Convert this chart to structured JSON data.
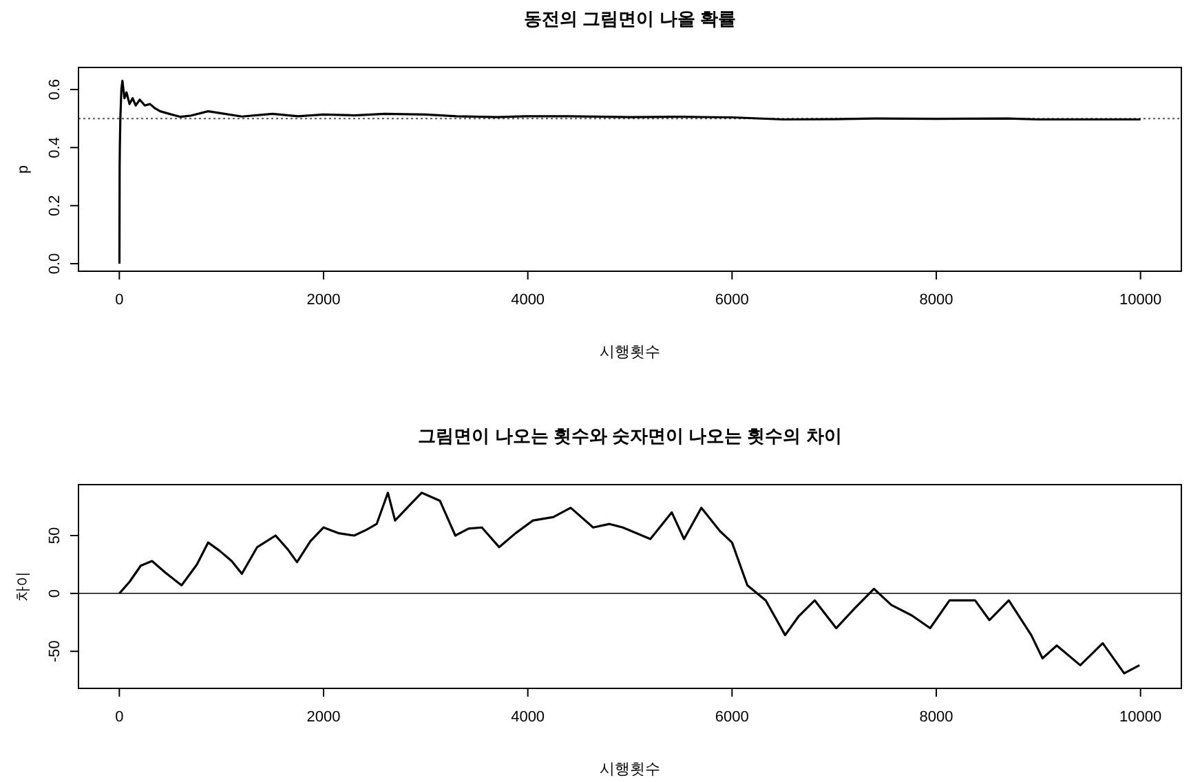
{
  "chart_data": [
    {
      "type": "line",
      "title": "동전의 그림면이 나올 확률",
      "xlabel": "시행횟수",
      "ylabel": "p",
      "xlim": [
        -400,
        10400
      ],
      "ylim": [
        -0.026,
        0.676
      ],
      "xticks": [
        0,
        2000,
        4000,
        6000,
        8000,
        10000
      ],
      "yticks": [
        {
          "value": 0,
          "label": "0.0"
        },
        0.2,
        0.4,
        0.6
      ],
      "ref_lines": [
        {
          "axis": "y",
          "value": 0.5,
          "color": "#555555",
          "line_style": "dotted"
        }
      ],
      "series": [
        {
          "color": "#000000",
          "line_style": "solid",
          "x": [
            1,
            3,
            5,
            10,
            20,
            30,
            40,
            50,
            70,
            100,
            130,
            160,
            200,
            250,
            300,
            350,
            400,
            500,
            600,
            700,
            870,
            1000,
            1200,
            1500,
            1750,
            2000,
            2300,
            2600,
            3000,
            3300,
            3700,
            4000,
            4400,
            5000,
            5500,
            6000,
            6500,
            7000,
            7400,
            8000,
            8700,
            9000,
            9400,
            10000
          ],
          "values": [
            0.0,
            0.333,
            0.4,
            0.5,
            0.6,
            0.63,
            0.6,
            0.57,
            0.59,
            0.55,
            0.57,
            0.545,
            0.565,
            0.545,
            0.55,
            0.535,
            0.525,
            0.515,
            0.506,
            0.51,
            0.525,
            0.518,
            0.507,
            0.516,
            0.508,
            0.514,
            0.511,
            0.516,
            0.514,
            0.508,
            0.505,
            0.508,
            0.508,
            0.505,
            0.506,
            0.504,
            0.497,
            0.498,
            0.5,
            0.499,
            0.5,
            0.497,
            0.497,
            0.497
          ]
        }
      ]
    },
    {
      "type": "line",
      "title": "그림면이 나오는 횟수와 숫자면이 나오는 횟수의 차이",
      "xlabel": "시행횟수",
      "ylabel": "차이",
      "xlim": [
        -400,
        10400
      ],
      "ylim": [
        -82,
        94
      ],
      "xticks": [
        0,
        2000,
        4000,
        6000,
        8000,
        10000
      ],
      "yticks": [
        -50,
        0,
        50
      ],
      "ref_lines": [
        {
          "axis": "y",
          "value": 0,
          "color": "#444444",
          "line_style": "solid"
        }
      ],
      "series": [
        {
          "color": "#000000",
          "line_style": "solid",
          "x": [
            0,
            100,
            210,
            320,
            450,
            610,
            760,
            870,
            980,
            1100,
            1200,
            1350,
            1530,
            1650,
            1740,
            1870,
            2000,
            2150,
            2300,
            2420,
            2520,
            2630,
            2700,
            2830,
            2960,
            3140,
            3290,
            3420,
            3550,
            3720,
            3880,
            4050,
            4250,
            4420,
            4640,
            4800,
            4930,
            5200,
            5410,
            5530,
            5700,
            5880,
            6000,
            6150,
            6330,
            6520,
            6650,
            6810,
            7020,
            7200,
            7390,
            7560,
            7760,
            7940,
            8130,
            8380,
            8520,
            8710,
            8930,
            9040,
            9180,
            9410,
            9630,
            9840,
            9990
          ],
          "values": [
            0,
            10,
            24,
            28,
            18,
            7,
            25,
            44,
            37,
            28,
            17,
            40,
            50,
            38,
            27,
            45,
            57,
            52,
            50,
            55,
            60,
            87,
            63,
            75,
            87,
            80,
            50,
            56,
            57,
            40,
            52,
            63,
            66,
            74,
            57,
            60,
            57,
            47,
            70,
            47,
            74,
            54,
            44,
            7,
            -6,
            -36,
            -20,
            -6,
            -30,
            -13,
            4,
            -10,
            -19,
            -30,
            -6,
            -6,
            -23,
            -6,
            -36,
            -56,
            -45,
            -62,
            -43,
            -69,
            -62
          ]
        }
      ]
    }
  ]
}
